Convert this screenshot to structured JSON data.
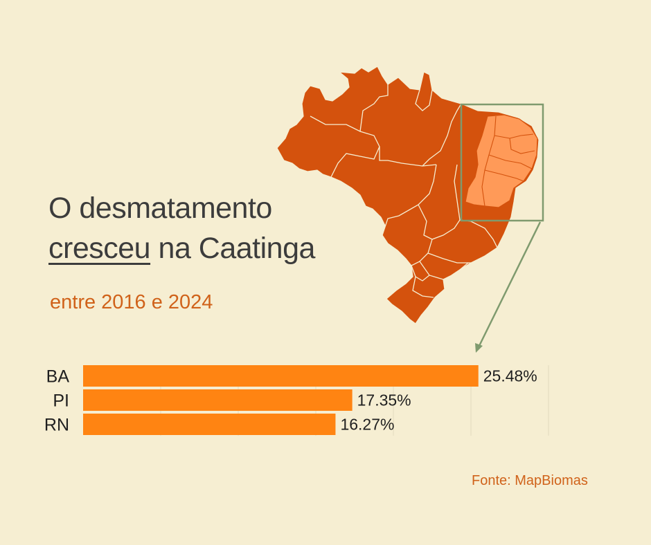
{
  "headline": {
    "line1": "O desmatamento",
    "line2_underlined": "cresceu",
    "line2_rest": " na Caatinga"
  },
  "subtitle": "entre 2016 e 2024",
  "source": "Fonte: MapBiomas",
  "colors": {
    "background": "#f6eed2",
    "map_fill": "#d4520d",
    "caatinga_fill": "#ff9a58",
    "bar": "#ff8412",
    "accent_text": "#d0621a",
    "highlight_box": "#7f9a6e"
  },
  "map": {
    "icon": "brazil-map-icon",
    "highlight": "nordeste-caatinga-region"
  },
  "chart_data": {
    "type": "bar",
    "orientation": "horizontal",
    "categories": [
      "BA",
      "PI",
      "RN"
    ],
    "values": [
      25.48,
      17.35,
      16.27
    ],
    "value_labels": [
      "25.48%",
      "17.35%",
      "16.27%"
    ],
    "xlim": [
      0,
      30
    ],
    "grid": true,
    "legend": "none"
  }
}
